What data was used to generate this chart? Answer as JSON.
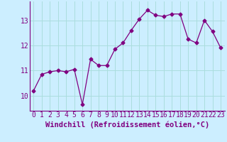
{
  "x": [
    0,
    1,
    2,
    3,
    4,
    5,
    6,
    7,
    8,
    9,
    10,
    11,
    12,
    13,
    14,
    15,
    16,
    17,
    18,
    19,
    20,
    21,
    22,
    23
  ],
  "y": [
    10.2,
    10.85,
    10.95,
    11.0,
    10.95,
    11.05,
    9.65,
    11.45,
    11.2,
    11.2,
    11.85,
    12.1,
    12.6,
    13.05,
    13.4,
    13.2,
    13.15,
    13.25,
    13.25,
    12.25,
    12.1,
    13.0,
    12.55,
    11.9
  ],
  "line_color": "#800080",
  "marker": "D",
  "marker_size": 2.5,
  "bg_color": "#cceeff",
  "grid_color": "#aadddd",
  "xlabel": "Windchill (Refroidissement éolien,°C)",
  "xlabel_fontsize": 7.5,
  "tick_fontsize": 7,
  "ylim": [
    9.4,
    13.75
  ],
  "xlim": [
    -0.5,
    23.5
  ],
  "yticks": [
    10,
    11,
    12,
    13
  ],
  "xticks": [
    0,
    1,
    2,
    3,
    4,
    5,
    6,
    7,
    8,
    9,
    10,
    11,
    12,
    13,
    14,
    15,
    16,
    17,
    18,
    19,
    20,
    21,
    22,
    23
  ]
}
